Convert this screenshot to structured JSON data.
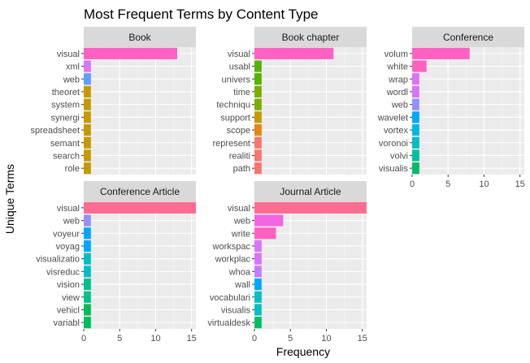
{
  "chart_data": {
    "type": "bar",
    "orientation": "horizontal",
    "title": "Most Frequent Terms by Content Type",
    "xlabel": "Frequency",
    "ylabel": "Unique Terms",
    "xlim": [
      0,
      15.6
    ],
    "xticks": [
      0,
      5,
      10,
      15
    ],
    "grid": true,
    "legend": "none",
    "panels": [
      {
        "name": "Book",
        "categories": [
          "visual",
          "xml",
          "web",
          "theoret",
          "system",
          "synergi",
          "spreadsheet",
          "semant",
          "search",
          "role"
        ],
        "values": [
          13,
          1,
          1,
          1,
          1,
          1,
          1,
          1,
          1,
          1
        ],
        "colors": [
          "#FF61C3",
          "#DB72FB",
          "#619CFF",
          "#C49A00",
          "#C49A00",
          "#C49A00",
          "#C49A00",
          "#C49A00",
          "#C49A00",
          "#C49A00"
        ]
      },
      {
        "name": "Book chapter",
        "categories": [
          "visual",
          "usabl",
          "univers",
          "time",
          "techniqu",
          "support",
          "scope",
          "represent",
          "realiti",
          "path"
        ],
        "values": [
          11,
          1,
          1,
          1,
          1,
          1,
          1,
          1,
          1,
          1
        ],
        "colors": [
          "#FF61C3",
          "#53B400",
          "#53B400",
          "#7CAE00",
          "#7CAE00",
          "#C49A00",
          "#E68613",
          "#F8766D",
          "#F8766D",
          "#F8766D"
        ]
      },
      {
        "name": "Conference",
        "categories": [
          "volum",
          "white",
          "wrap",
          "wordl",
          "web",
          "wavelet",
          "vortex",
          "voronoi",
          "volvi",
          "visualis"
        ],
        "values": [
          8,
          2,
          1,
          1,
          1,
          1,
          1,
          1,
          1,
          1
        ],
        "colors": [
          "#FF61C3",
          "#FF61C3",
          "#DB72FB",
          "#DB72FB",
          "#9590FF",
          "#00A9FF",
          "#00B8E7",
          "#00BFC4",
          "#00C19A",
          "#00BE67"
        ]
      },
      {
        "name": "Conference Article",
        "categories": [
          "visual",
          "web",
          "voyeur",
          "voyag",
          "visualizatio",
          "visreduc",
          "vision",
          "view",
          "vehicl",
          "variabl"
        ],
        "values": [
          16,
          1,
          1,
          1,
          1,
          1,
          1,
          1,
          1,
          1
        ],
        "colors": [
          "#FF6C91",
          "#9590FF",
          "#00A9FF",
          "#00A9FF",
          "#00BFC4",
          "#00BFC4",
          "#00C08B",
          "#00C08B",
          "#00BD5C",
          "#00BD5C"
        ]
      },
      {
        "name": "Journal Article",
        "categories": [
          "visual",
          "web",
          "write",
          "workspac",
          "workplac",
          "whoa",
          "wall",
          "vocabulari",
          "visualis",
          "virtualdesk"
        ],
        "values": [
          16,
          4,
          3,
          1,
          1,
          1,
          1,
          1,
          1,
          1
        ],
        "colors": [
          "#FF6C91",
          "#F564E3",
          "#FF61C3",
          "#DB72FB",
          "#DB72FB",
          "#C77CFF",
          "#00A9FF",
          "#00BFC4",
          "#00BFC4",
          "#00BE67"
        ]
      }
    ]
  }
}
